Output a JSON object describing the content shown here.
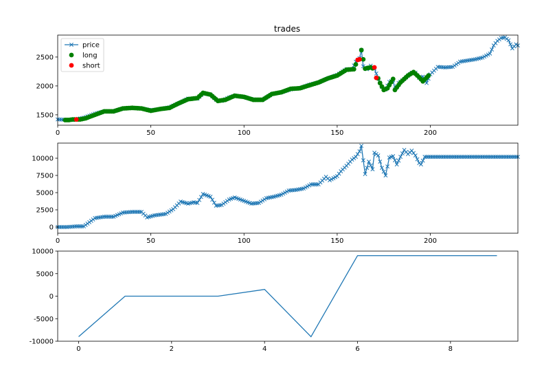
{
  "chart_data": [
    {
      "type": "line",
      "title": "trades",
      "xlim": [
        0,
        247
      ],
      "ylim": [
        1320,
        2880
      ],
      "xticks": [
        0,
        50,
        100,
        150,
        200
      ],
      "yticks": [
        1500,
        2000,
        2500
      ],
      "legend": {
        "placement": "top-left",
        "entries": [
          "price",
          "long",
          "short"
        ]
      },
      "series": [
        {
          "name": "price",
          "color": "#1f77b4",
          "marker": "x",
          "points": [
            [
              0,
              1420
            ],
            [
              8,
              1410
            ],
            [
              14,
              1450
            ],
            [
              20,
              1520
            ],
            [
              25,
              1560
            ],
            [
              30,
              1560
            ],
            [
              35,
              1610
            ],
            [
              40,
              1620
            ],
            [
              45,
              1610
            ],
            [
              50,
              1580
            ],
            [
              55,
              1600
            ],
            [
              60,
              1630
            ],
            [
              65,
              1700
            ],
            [
              70,
              1780
            ],
            [
              75,
              1780
            ],
            [
              78,
              1870
            ],
            [
              82,
              1850
            ],
            [
              85,
              1760
            ],
            [
              88,
              1740
            ],
            [
              92,
              1800
            ],
            [
              95,
              1830
            ],
            [
              100,
              1810
            ],
            [
              103,
              1780
            ],
            [
              106,
              1760
            ],
            [
              110,
              1760
            ],
            [
              115,
              1860
            ],
            [
              120,
              1890
            ],
            [
              125,
              1940
            ],
            [
              130,
              1960
            ],
            [
              135,
              2020
            ],
            [
              140,
              2060
            ],
            [
              145,
              2130
            ],
            [
              150,
              2190
            ],
            [
              155,
              2290
            ],
            [
              158,
              2290
            ],
            [
              160,
              2420
            ],
            [
              162,
              2480
            ],
            [
              163,
              2620
            ],
            [
              164,
              2340
            ],
            [
              166,
              2290
            ],
            [
              168,
              2350
            ],
            [
              170,
              2300
            ],
            [
              172,
              2130
            ],
            [
              174,
              1980
            ],
            [
              176,
              1940
            ],
            [
              178,
              2070
            ],
            [
              180,
              2100
            ],
            [
              181,
              1940
            ],
            [
              183,
              2050
            ],
            [
              186,
              2120
            ],
            [
              190,
              2230
            ],
            [
              192,
              2230
            ],
            [
              194,
              2140
            ],
            [
              196,
              2160
            ],
            [
              198,
              2050
            ],
            [
              200,
              2200
            ],
            [
              204,
              2330
            ],
            [
              208,
              2320
            ],
            [
              212,
              2330
            ],
            [
              216,
              2420
            ],
            [
              220,
              2440
            ],
            [
              224,
              2460
            ],
            [
              228,
              2490
            ],
            [
              232,
              2560
            ],
            [
              234,
              2700
            ],
            [
              236,
              2780
            ],
            [
              238,
              2830
            ],
            [
              240,
              2840
            ],
            [
              242,
              2790
            ],
            [
              244,
              2650
            ],
            [
              246,
              2720
            ],
            [
              247,
              2700
            ]
          ]
        },
        {
          "name": "long",
          "color": "#008000",
          "marker": "o",
          "x_range": [
            4,
            199
          ],
          "note_points": [
            [
              4,
              1410
            ],
            [
              6,
              1410
            ],
            [
              8,
              1420
            ],
            [
              12,
              1420
            ],
            [
              15,
              1440
            ],
            [
              20,
              1500
            ],
            [
              25,
              1560
            ],
            [
              30,
              1560
            ],
            [
              35,
              1610
            ],
            [
              40,
              1620
            ],
            [
              45,
              1610
            ],
            [
              50,
              1570
            ],
            [
              55,
              1600
            ],
            [
              60,
              1620
            ],
            [
              65,
              1700
            ],
            [
              70,
              1770
            ],
            [
              75,
              1790
            ],
            [
              78,
              1880
            ],
            [
              82,
              1850
            ],
            [
              86,
              1740
            ],
            [
              90,
              1760
            ],
            [
              95,
              1830
            ],
            [
              100,
              1810
            ],
            [
              105,
              1760
            ],
            [
              110,
              1760
            ],
            [
              115,
              1860
            ],
            [
              120,
              1890
            ],
            [
              125,
              1950
            ],
            [
              130,
              1960
            ],
            [
              135,
              2010
            ],
            [
              140,
              2060
            ],
            [
              145,
              2130
            ],
            [
              150,
              2180
            ],
            [
              155,
              2280
            ],
            [
              159,
              2290
            ],
            [
              163,
              2620
            ],
            [
              165,
              2300
            ],
            [
              168,
              2320
            ],
            [
              170,
              2290
            ],
            [
              173,
              2050
            ],
            [
              175,
              1930
            ],
            [
              177,
              1960
            ],
            [
              180,
              2120
            ],
            [
              181,
              1930
            ],
            [
              184,
              2060
            ],
            [
              188,
              2180
            ],
            [
              191,
              2240
            ],
            [
              194,
              2150
            ],
            [
              196,
              2080
            ],
            [
              199,
              2180
            ]
          ]
        },
        {
          "name": "short",
          "color": "#ff0000",
          "marker": "o",
          "points": [
            [
              10,
              1420
            ],
            [
              161,
              2450
            ],
            [
              162,
              2460
            ],
            [
              170,
              2320
            ],
            [
              171,
              2140
            ]
          ]
        }
      ]
    },
    {
      "type": "line",
      "title": "",
      "xlim": [
        0,
        247
      ],
      "ylim": [
        -900,
        12200
      ],
      "xticks": [
        0,
        50,
        100,
        150,
        200
      ],
      "yticks": [
        0,
        2500,
        5000,
        7500,
        10000
      ],
      "series": [
        {
          "name": "",
          "color": "#1f77b4",
          "marker": "x",
          "points": [
            [
              0,
              0
            ],
            [
              5,
              0
            ],
            [
              10,
              100
            ],
            [
              14,
              100
            ],
            [
              16,
              500
            ],
            [
              20,
              1300
            ],
            [
              25,
              1500
            ],
            [
              30,
              1500
            ],
            [
              35,
              2100
            ],
            [
              40,
              2200
            ],
            [
              45,
              2200
            ],
            [
              48,
              1400
            ],
            [
              52,
              1700
            ],
            [
              55,
              1800
            ],
            [
              58,
              1900
            ],
            [
              62,
              2600
            ],
            [
              66,
              3700
            ],
            [
              70,
              3400
            ],
            [
              73,
              3600
            ],
            [
              75,
              3500
            ],
            [
              78,
              4800
            ],
            [
              82,
              4400
            ],
            [
              85,
              3100
            ],
            [
              88,
              3200
            ],
            [
              92,
              4000
            ],
            [
              95,
              4300
            ],
            [
              100,
              3800
            ],
            [
              104,
              3400
            ],
            [
              108,
              3500
            ],
            [
              112,
              4200
            ],
            [
              116,
              4400
            ],
            [
              120,
              4700
            ],
            [
              124,
              5300
            ],
            [
              128,
              5400
            ],
            [
              132,
              5600
            ],
            [
              136,
              6200
            ],
            [
              140,
              6200
            ],
            [
              144,
              7300
            ],
            [
              146,
              6800
            ],
            [
              150,
              7400
            ],
            [
              152,
              8100
            ],
            [
              155,
              8900
            ],
            [
              158,
              9800
            ],
            [
              160,
              10200
            ],
            [
              162,
              11000
            ],
            [
              163,
              11800
            ],
            [
              164,
              9700
            ],
            [
              165,
              7700
            ],
            [
              167,
              9500
            ],
            [
              169,
              8400
            ],
            [
              170,
              10800
            ],
            [
              172,
              10400
            ],
            [
              174,
              8600
            ],
            [
              176,
              7500
            ],
            [
              178,
              10100
            ],
            [
              180,
              10300
            ],
            [
              182,
              9100
            ],
            [
              184,
              10200
            ],
            [
              186,
              11200
            ],
            [
              188,
              10600
            ],
            [
              190,
              11100
            ],
            [
              192,
              10400
            ],
            [
              194,
              9300
            ],
            [
              195,
              9100
            ],
            [
              197,
              10200
            ],
            [
              200,
              10200
            ],
            [
              247,
              10200
            ]
          ]
        }
      ]
    },
    {
      "type": "line",
      "title": "",
      "xlim": [
        -0.45,
        9.45
      ],
      "ylim": [
        -10000,
        10000
      ],
      "xticks": [
        0,
        2,
        4,
        6,
        8
      ],
      "yticks": [
        -10000,
        -5000,
        0,
        5000,
        10000
      ],
      "series": [
        {
          "name": "",
          "color": "#1f77b4",
          "marker": "",
          "points": [
            [
              0,
              -9000
            ],
            [
              1,
              0
            ],
            [
              2,
              0
            ],
            [
              3,
              0
            ],
            [
              4,
              1500
            ],
            [
              5,
              -9000
            ],
            [
              6,
              9000
            ],
            [
              7,
              9000
            ],
            [
              8,
              9000
            ],
            [
              9,
              9000
            ]
          ]
        }
      ]
    }
  ]
}
